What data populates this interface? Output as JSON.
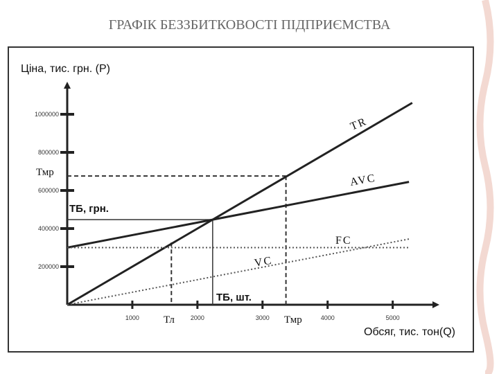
{
  "chart_data": {
    "type": "line",
    "title": "ГРАФІК БЕЗЗБИТКОВОСТІ ПІДПРИЄМСТВА",
    "y_label": "Ціна, тис. грн. (Р)",
    "x_label": "Обсяг, тис. тон(Q)",
    "xlim": [
      0,
      5600
    ],
    "ylim": [
      0,
      1200000
    ],
    "xticks": [
      1000,
      2000,
      3000,
      4000,
      5000
    ],
    "yticks": [
      200000,
      400000,
      600000,
      800000,
      1000000
    ],
    "series": [
      {
        "name": "TR",
        "color": "#222222",
        "style": "solid",
        "x": [
          0,
          5300
        ],
        "y": [
          0,
          1060000
        ]
      },
      {
        "name": "AVC",
        "color": "#222222",
        "style": "solid",
        "x": [
          0,
          5250
        ],
        "y": [
          300000,
          645000
        ]
      },
      {
        "name": "FC",
        "color": "#555555",
        "style": "dotted",
        "x": [
          0,
          5250
        ],
        "y": [
          300000,
          300000
        ]
      },
      {
        "name": "VC",
        "color": "#555555",
        "style": "dotted",
        "x": [
          0,
          5250
        ],
        "y": [
          0,
          345000
        ]
      }
    ],
    "guides": [
      {
        "label": "ТБ, грн.",
        "x": [
          0,
          2234
        ],
        "y": [
          447000,
          447000
        ]
      },
      {
        "label": "ТБ, шт.",
        "x": [
          2234,
          2234
        ],
        "y": [
          447000,
          0
        ]
      },
      {
        "label": "Тмр",
        "x": [
          0,
          3360
        ],
        "y": [
          676000,
          676000
        ]
      },
      {
        "label": "Тл",
        "x": [
          1600,
          1600
        ],
        "y": [
          327000,
          0
        ]
      },
      {
        "label": "Тмр",
        "x": [
          3360,
          3360
        ],
        "y": [
          676000,
          0
        ]
      }
    ]
  }
}
